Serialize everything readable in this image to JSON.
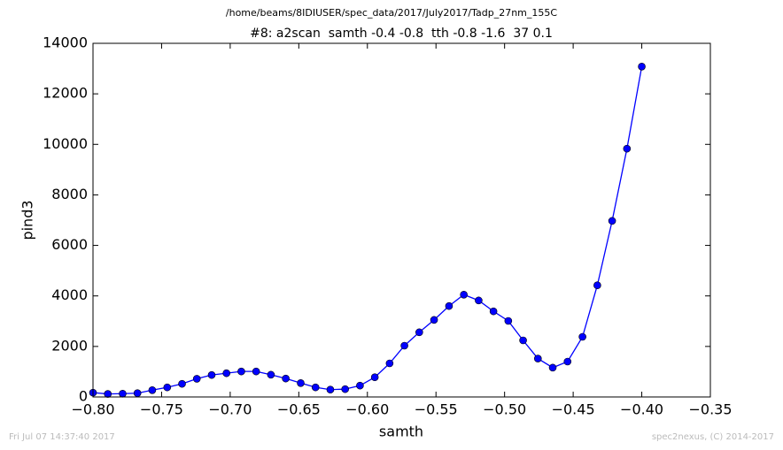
{
  "chart_data": {
    "type": "line",
    "suptitle": "/home/beams/8IDIUSER/spec_data/2017/July2017/Tadp_27nm_155C",
    "title": "#8: a2scan  samth -0.4 -0.8  tth -0.8 -1.6  37 0.1",
    "x_label": "samth",
    "y_label": "pind3",
    "footer_left": "Fri Jul 07 14:37:40 2017",
    "footer_right": "spec2nexus, (C) 2014-2017",
    "x": [
      -0.8,
      -0.7892,
      -0.7784,
      -0.7676,
      -0.7568,
      -0.7459,
      -0.7351,
      -0.7243,
      -0.7135,
      -0.7027,
      -0.6919,
      -0.6811,
      -0.6703,
      -0.6595,
      -0.6486,
      -0.6378,
      -0.627,
      -0.6162,
      -0.6054,
      -0.5946,
      -0.5838,
      -0.573,
      -0.5622,
      -0.5514,
      -0.5405,
      -0.5297,
      -0.5189,
      -0.5081,
      -0.4973,
      -0.4865,
      -0.4757,
      -0.4649,
      -0.4541,
      -0.4432,
      -0.4324,
      -0.4216,
      -0.4108,
      -0.4
    ],
    "series": [
      {
        "color": "#0000ff",
        "values": [
          170,
          120,
          130,
          150,
          270,
          380,
          520,
          720,
          870,
          940,
          1010,
          1010,
          880,
          730,
          550,
          380,
          290,
          310,
          450,
          780,
          1330,
          2030,
          2560,
          3050,
          3600,
          4050,
          3820,
          3390,
          3010,
          2240,
          1520,
          1160,
          1400,
          2380,
          4420,
          6970,
          9830,
          13080
        ]
      }
    ],
    "xlim": [
      -0.8,
      -0.35
    ],
    "xticks": [
      {
        "value": -0.8,
        "label": "−0.80"
      },
      {
        "value": -0.75,
        "label": "−0.75"
      },
      {
        "value": -0.7,
        "label": "−0.70"
      },
      {
        "value": -0.65,
        "label": "−0.65"
      },
      {
        "value": -0.6,
        "label": "−0.60"
      },
      {
        "value": -0.55,
        "label": "−0.55"
      },
      {
        "value": -0.5,
        "label": "−0.50"
      },
      {
        "value": -0.45,
        "label": "−0.45"
      },
      {
        "value": -0.4,
        "label": "−0.40"
      },
      {
        "value": -0.35,
        "label": "−0.35"
      }
    ],
    "ylim": [
      0,
      14000
    ],
    "yticks": [
      0,
      2000,
      4000,
      6000,
      8000,
      10000,
      12000,
      14000
    ],
    "grid": false
  }
}
